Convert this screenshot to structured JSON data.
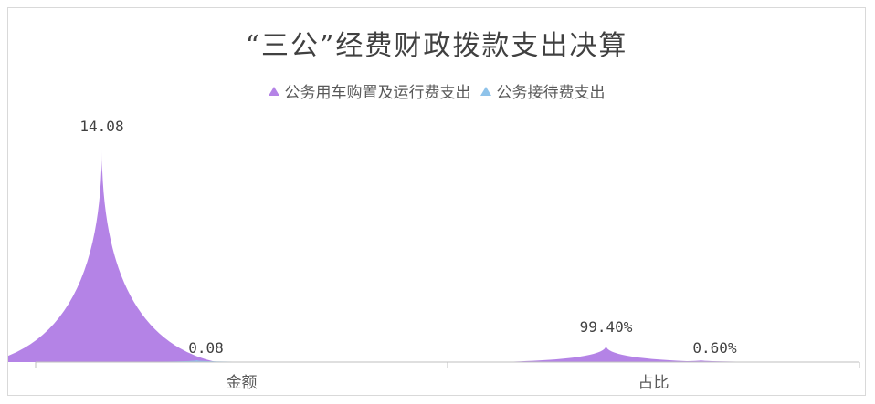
{
  "chart_data": {
    "type": "pictorial-bar",
    "title": "“三公”经费财政拨款支出决算",
    "categories": [
      "金额",
      "占比"
    ],
    "series": [
      {
        "name": "公务用车购置及运行费支出",
        "color": "#b483e6",
        "values": [
          14.08,
          99.4
        ],
        "labels": [
          "14.08",
          "99.40%"
        ]
      },
      {
        "name": "公务接待费支出",
        "color": "#8fc3ea",
        "values": [
          0.08,
          0.6
        ],
        "labels": [
          "0.08",
          "0.60%"
        ]
      }
    ],
    "legend_position": "top",
    "grid": false
  }
}
